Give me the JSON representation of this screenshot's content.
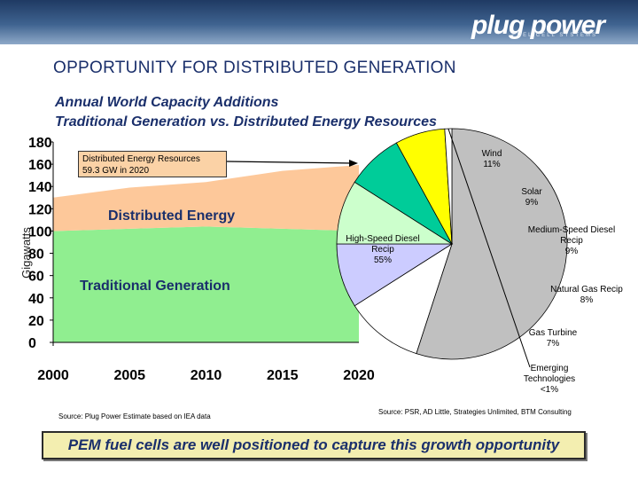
{
  "header": {
    "logo_text": "plug power",
    "logo_tagline": "FUEL CELL SYSTEMS"
  },
  "slide": {
    "title": "OPPORTUNITY FOR DISTRIBUTED GENERATION",
    "subtitle_line1": "Annual World Capacity Additions",
    "subtitle_line2": "Traditional Generation vs. Distributed Energy Resources",
    "footer_callout": "PEM fuel cells are well positioned to capture this growth opportunity"
  },
  "chart_data": [
    {
      "type": "area",
      "ylabel": "Gigawatts",
      "x": [
        2000,
        2005,
        2010,
        2015,
        2020
      ],
      "xticks": [
        "2000",
        "2005",
        "2010",
        "2015",
        "2020"
      ],
      "yticks": [
        "0",
        "20",
        "40",
        "60",
        "80",
        "100",
        "120",
        "140",
        "160",
        "180"
      ],
      "ylim": [
        0,
        180
      ],
      "series": [
        {
          "name": "Traditional Generation",
          "values": [
            100,
            102,
            104,
            102,
            100
          ],
          "color": "#90ee90"
        },
        {
          "name": "Distributed Energy",
          "values": [
            30,
            37,
            40,
            52,
            59.3
          ],
          "color": "#fdc89a"
        }
      ],
      "annotation": {
        "line1": "Distributed Energy Resources",
        "line2": "59.3 GW in 2020"
      },
      "source": "Source:  Plug Power Estimate based on IEA data"
    },
    {
      "type": "pie",
      "slices": [
        {
          "label": "High-Speed Diesel Recip",
          "value": 55,
          "display": "55%",
          "color": "#c0c0c0"
        },
        {
          "label": "Wind",
          "value": 11,
          "display": "11%",
          "color": "#ffffff"
        },
        {
          "label": "Solar",
          "value": 9,
          "display": "9%",
          "color": "#ccccff"
        },
        {
          "label": "Medium-Speed Diesel Recip",
          "value": 9,
          "display": "9%",
          "color": "#ccffcc"
        },
        {
          "label": "Natural Gas Recip",
          "value": 8,
          "display": "8%",
          "color": "#00cc99"
        },
        {
          "label": "Gas Turbine",
          "value": 7,
          "display": "7%",
          "color": "#ffff00"
        },
        {
          "label": "Emerging Technologies",
          "value": 1,
          "display": "<1%",
          "color": "#ffffff"
        }
      ],
      "source": "Source: PSR, AD Little, Strategies Unlimited, BTM Consulting"
    }
  ]
}
